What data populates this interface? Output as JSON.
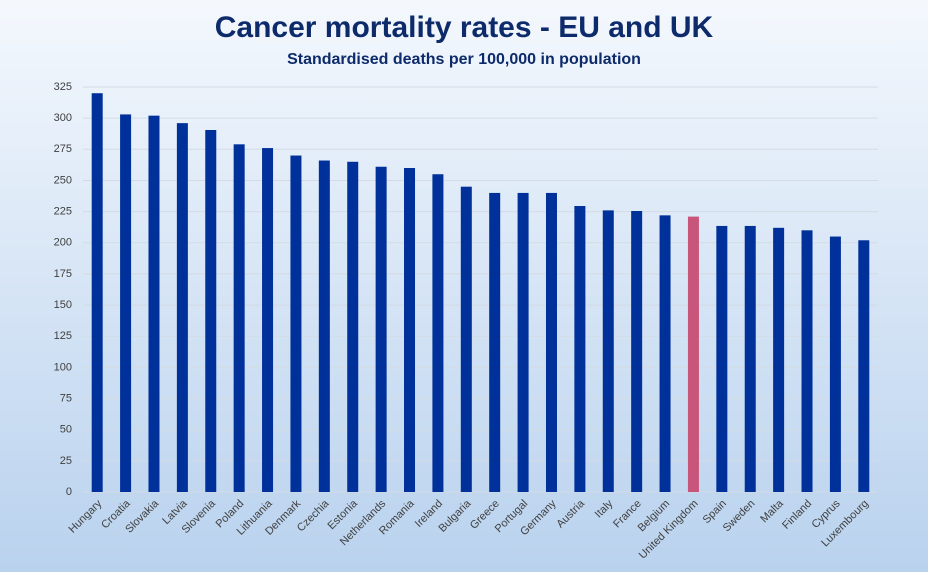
{
  "chart_data": {
    "type": "bar",
    "title": "Cancer mortality rates - EU and UK",
    "subtitle": "Standardised deaths per 100,000 in population",
    "categories": [
      "Hungary",
      "Croatia",
      "Slovakia",
      "Latvia",
      "Slovenia",
      "Poland",
      "Lithuania",
      "Denmark",
      "Czechia",
      "Estonia",
      "Netherlands",
      "Romania",
      "Ireland",
      "Bulgaria",
      "Greece",
      "Portugal",
      "Germany",
      "Austria",
      "Italy",
      "France",
      "Belgium",
      "United Kingdom",
      "Spain",
      "Sweden",
      "Malta",
      "Finland",
      "Cyprus",
      "Luxembourg"
    ],
    "values": [
      320,
      303,
      302,
      296,
      290.5,
      279,
      276,
      270,
      266,
      265,
      261,
      260,
      255,
      245,
      240,
      240,
      240,
      229.5,
      226,
      225.5,
      222,
      221,
      213.5,
      213.5,
      212,
      210,
      205,
      202
    ],
    "colors": [
      "#00309a",
      "#00309a",
      "#00309a",
      "#00309a",
      "#00309a",
      "#00309a",
      "#00309a",
      "#00309a",
      "#00309a",
      "#00309a",
      "#00309a",
      "#00309a",
      "#00309a",
      "#00309a",
      "#00309a",
      "#00309a",
      "#00309a",
      "#00309a",
      "#00309a",
      "#00309a",
      "#00309a",
      "#c8567a",
      "#00309a",
      "#00309a",
      "#00309a",
      "#00309a",
      "#00309a",
      "#00309a"
    ],
    "ylim": [
      0,
      325
    ],
    "yticks": [
      0,
      25,
      50,
      75,
      100,
      125,
      150,
      175,
      200,
      225,
      250,
      275,
      300,
      325
    ],
    "grid": true
  }
}
